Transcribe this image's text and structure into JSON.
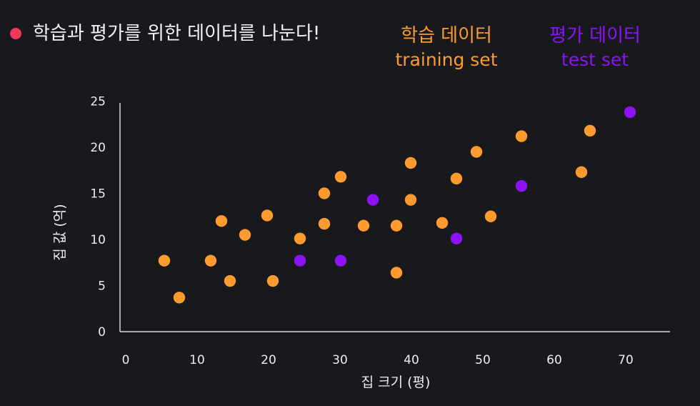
{
  "title": "학습과 평가를 위한 데이터를 나눈다!",
  "legend": {
    "training": {
      "label_ko": "학습 데이터",
      "label_en": "training set",
      "color": "#ff9a2e"
    },
    "test": {
      "label_ko": "평가 데이터",
      "label_en": "test set",
      "color": "#8d12f6"
    }
  },
  "chart_data": {
    "type": "scatter",
    "xlabel": "집 크기 (평)",
    "ylabel": "집 값 (억)",
    "xlim": [
      0,
      70
    ],
    "ylim": [
      0,
      25
    ],
    "xticks": [
      "0",
      "10",
      "20",
      "30",
      "40",
      "50",
      "60",
      "70"
    ],
    "yticks": [
      "0",
      "5",
      "10",
      "15",
      "20",
      "25"
    ],
    "grid": false,
    "series": [
      {
        "name": "training set",
        "color": "#ff9a2e",
        "points": [
          {
            "x": 5.4,
            "y": 7.7
          },
          {
            "x": 7.5,
            "y": 3.7
          },
          {
            "x": 11.9,
            "y": 7.7
          },
          {
            "x": 13.4,
            "y": 12.0
          },
          {
            "x": 14.6,
            "y": 5.5
          },
          {
            "x": 16.7,
            "y": 10.5
          },
          {
            "x": 19.8,
            "y": 12.6
          },
          {
            "x": 20.6,
            "y": 5.5
          },
          {
            "x": 24.4,
            "y": 10.1
          },
          {
            "x": 27.8,
            "y": 11.7
          },
          {
            "x": 27.8,
            "y": 15.0
          },
          {
            "x": 30.1,
            "y": 16.8
          },
          {
            "x": 33.3,
            "y": 11.5
          },
          {
            "x": 37.9,
            "y": 11.5
          },
          {
            "x": 37.9,
            "y": 6.4
          },
          {
            "x": 39.9,
            "y": 14.3
          },
          {
            "x": 39.9,
            "y": 18.3
          },
          {
            "x": 44.3,
            "y": 11.8
          },
          {
            "x": 46.3,
            "y": 16.6
          },
          {
            "x": 49.1,
            "y": 19.5
          },
          {
            "x": 51.1,
            "y": 12.5
          },
          {
            "x": 55.4,
            "y": 21.2
          },
          {
            "x": 63.8,
            "y": 17.3
          },
          {
            "x": 65.0,
            "y": 21.8
          }
        ]
      },
      {
        "name": "test set",
        "color": "#8d12f6",
        "points": [
          {
            "x": 24.4,
            "y": 7.7
          },
          {
            "x": 30.1,
            "y": 7.7
          },
          {
            "x": 34.6,
            "y": 14.3
          },
          {
            "x": 46.3,
            "y": 10.1
          },
          {
            "x": 55.4,
            "y": 15.8
          },
          {
            "x": 70.6,
            "y": 23.8
          }
        ]
      }
    ]
  }
}
